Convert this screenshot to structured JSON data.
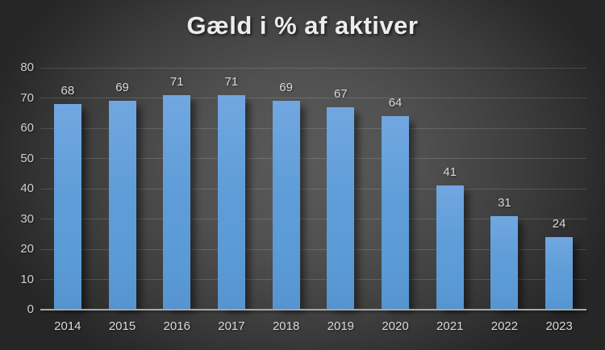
{
  "title": "Gæld i % af aktiver",
  "chart_data": {
    "type": "bar",
    "title": "Gæld i % af aktiver",
    "categories": [
      "2014",
      "2015",
      "2016",
      "2017",
      "2018",
      "2019",
      "2020",
      "2021",
      "2022",
      "2023"
    ],
    "values": [
      68,
      69,
      71,
      71,
      69,
      67,
      64,
      41,
      31,
      24
    ],
    "xlabel": "",
    "ylabel": "",
    "ylim": [
      0,
      80
    ],
    "yticks": [
      0,
      10,
      20,
      30,
      40,
      50,
      60,
      70,
      80
    ],
    "grid": true,
    "legend": false,
    "data_labels": true
  },
  "colors": {
    "bar_fill": "#5b9bd5",
    "bar_fill_top": "#71a7e0",
    "background_center": "#5a5a5a",
    "background_edge": "#262626",
    "gridline": "rgba(255,255,255,0.14)",
    "axis_line": "#a9a9a9",
    "tick_label": "#cfcfcf",
    "data_label": "#d9d9d9",
    "title_text": "#ececec"
  }
}
